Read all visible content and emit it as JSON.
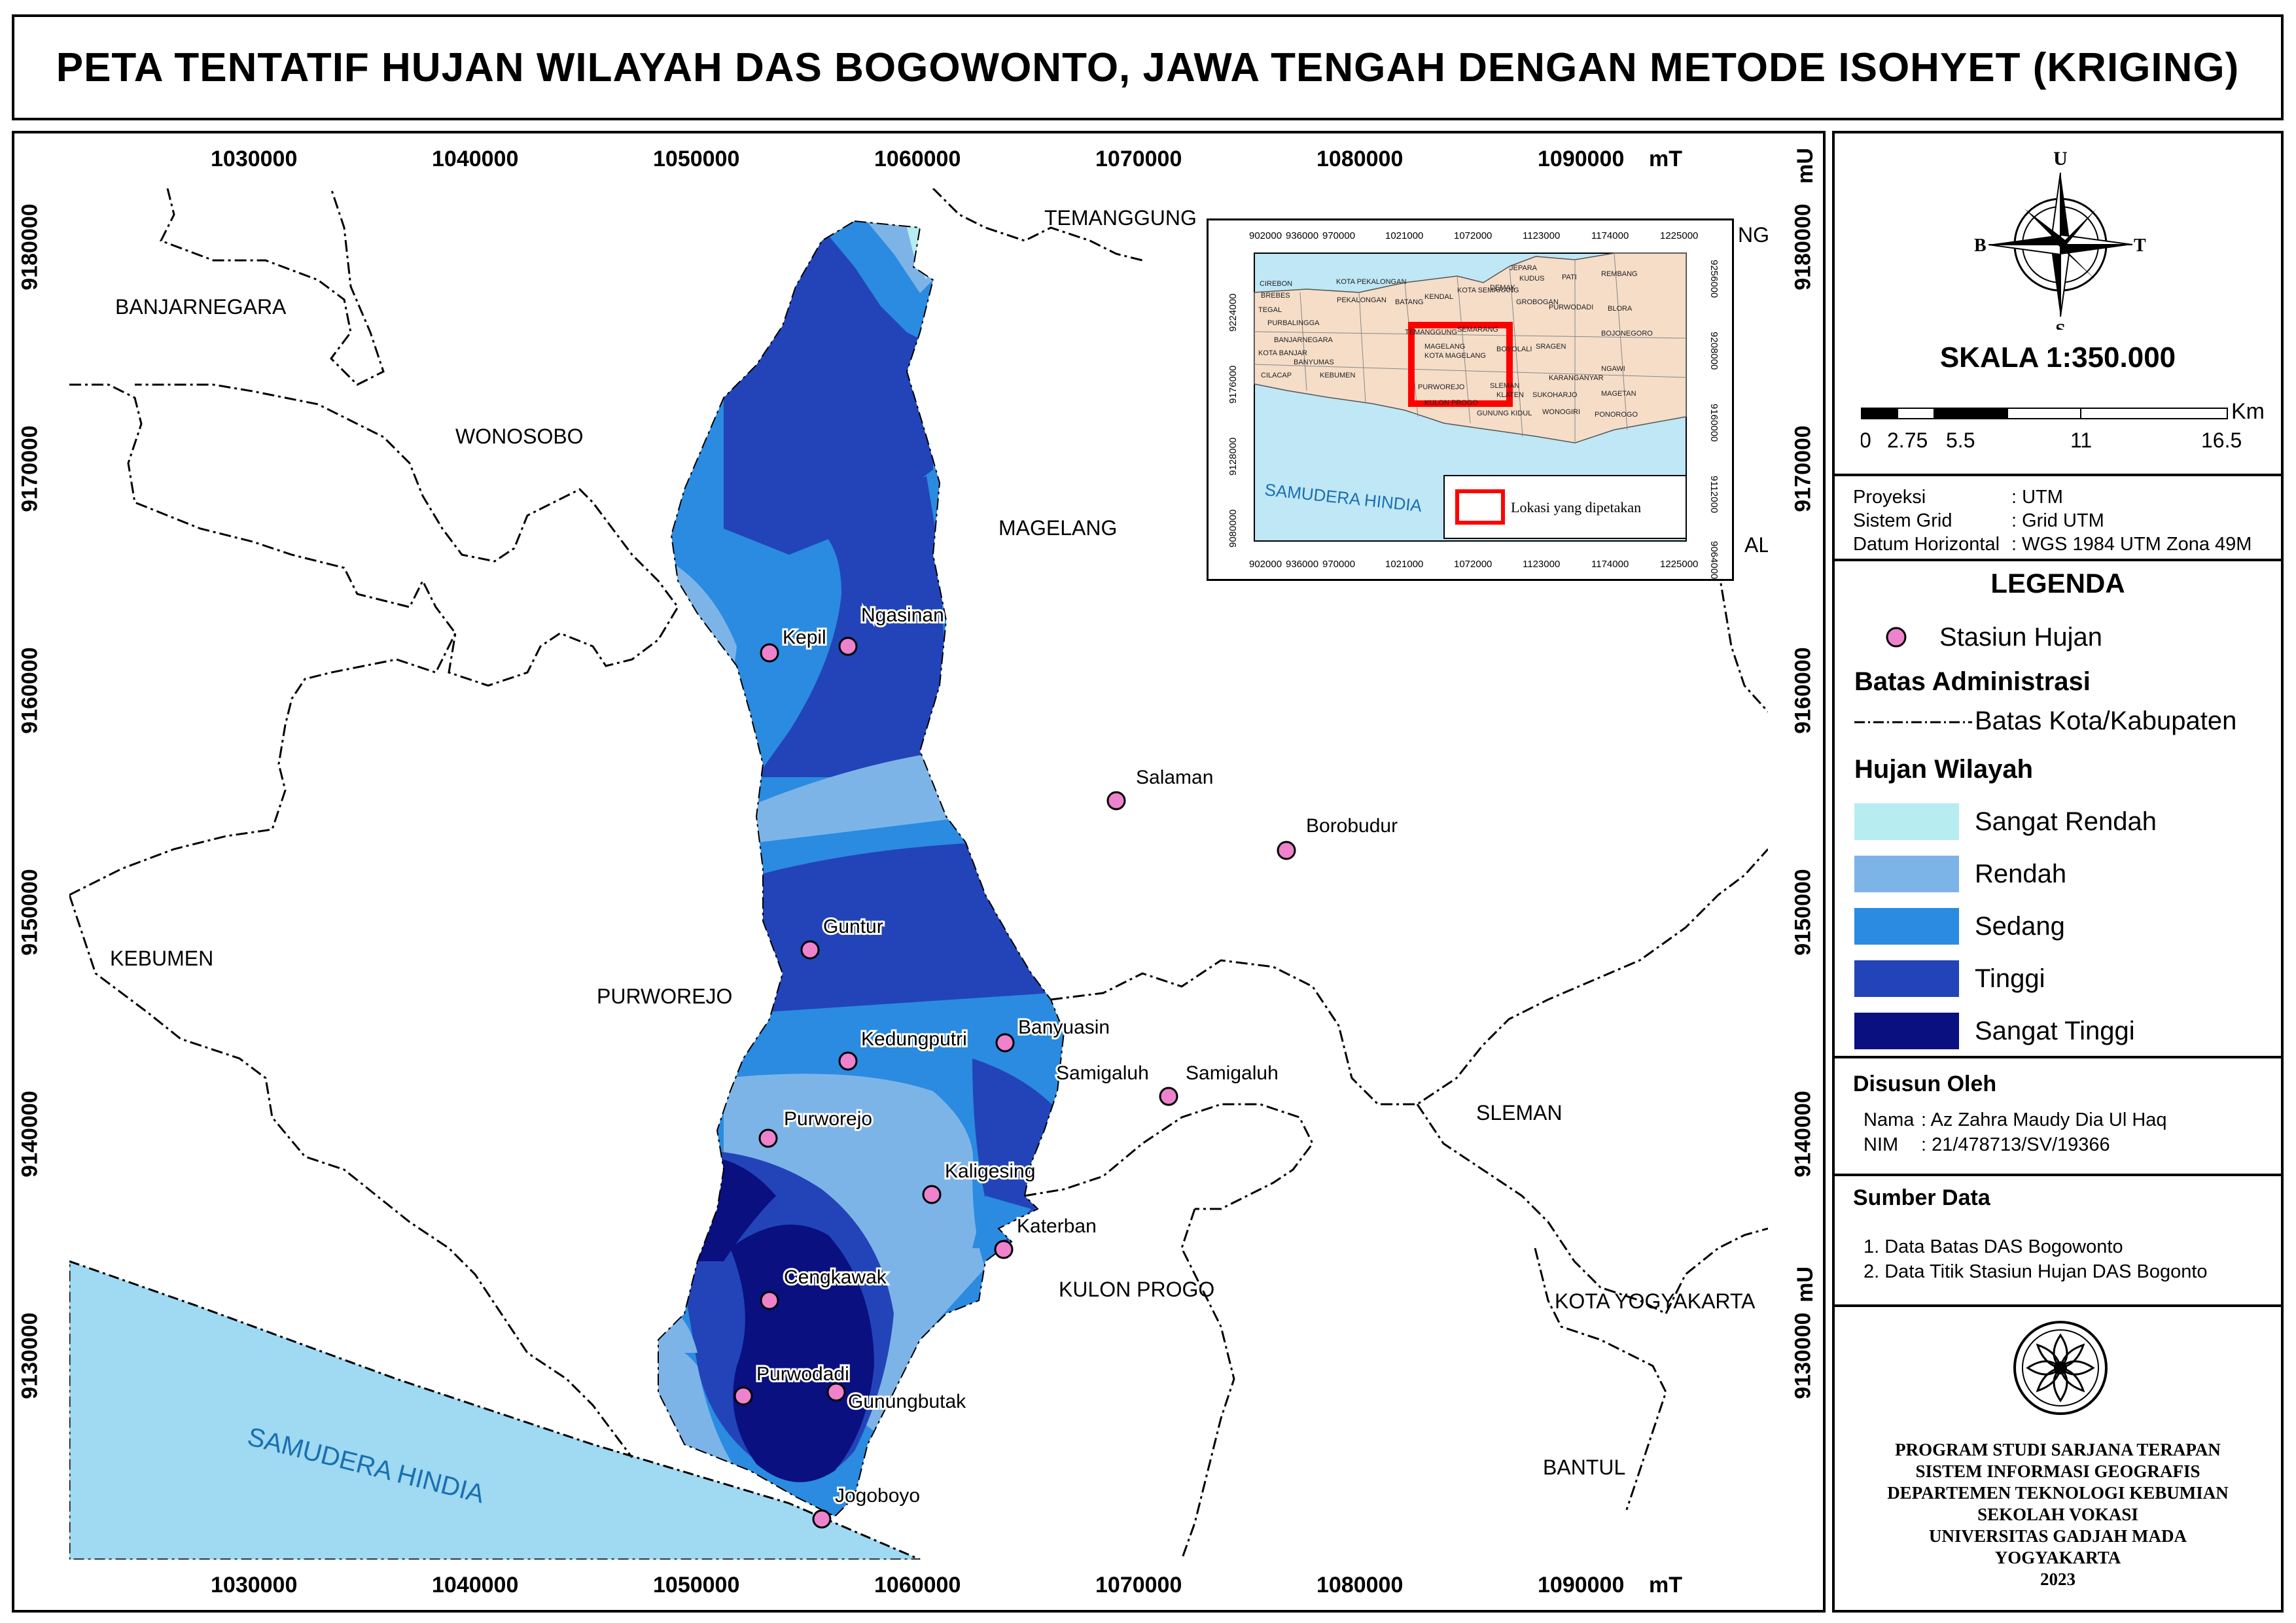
{
  "title": "PETA TENTATIF HUJAN WILAYAH DAS BOGOWONTO, JAWA TENGAH DENGAN METODE ISOHYET (KRIGING)",
  "grid": {
    "x_top": [
      "1030000",
      "1040000",
      "1050000",
      "1060000",
      "1070000",
      "1080000",
      "1090000"
    ],
    "x_bottom": [
      "1030000",
      "1040000",
      "1050000",
      "1060000",
      "1070000",
      "1080000",
      "1090000"
    ],
    "x_unit": "mT",
    "y_left": [
      "9180000",
      "9170000",
      "9160000",
      "9150000",
      "9140000",
      "9130000"
    ],
    "y_right": [
      "9180000",
      "9170000",
      "9160000",
      "9150000",
      "9140000",
      "9130000"
    ],
    "y_unit": "mU"
  },
  "regions": {
    "banjarnegara": "BANJARNEGARA",
    "wonosobo": "WONOSOBO",
    "temanggung": "TEMANGGUNG",
    "magelang": "MAGELANG",
    "kebumen": "KEBUMEN",
    "purworejo": "PURWOREJO",
    "kulon_progo": "KULON PROGO",
    "sleman": "SLEMAN",
    "kota_yogyakarta": "KOTA YOGYAKARTA",
    "bantul": "BANTUL",
    "samudera": "SAMUDERA HINDIA",
    "right_edge_1": "NG",
    "right_edge_2": "ALI"
  },
  "stations": [
    {
      "name": "Kepil"
    },
    {
      "name": "Ngasinan"
    },
    {
      "name": "Salaman"
    },
    {
      "name": "Borobudur"
    },
    {
      "name": "Guntur"
    },
    {
      "name": "Banyuasin"
    },
    {
      "name": "Kedungputri"
    },
    {
      "name": "Samigaluh"
    },
    {
      "name": "Samigaluh"
    },
    {
      "name": "Purworejo"
    },
    {
      "name": "Kaligesing"
    },
    {
      "name": "Katerban"
    },
    {
      "name": "Cengkawak"
    },
    {
      "name": "Purwodadi"
    },
    {
      "name": "Gunungbutak"
    },
    {
      "name": "Jogoboyo"
    }
  ],
  "inset": {
    "x_ticks": [
      "902000",
      "936000",
      "970000",
      "1021000",
      "1072000",
      "1123000",
      "1174000",
      "1225000"
    ],
    "y_left": [
      "9224000",
      "9176000",
      "9128000",
      "9080000"
    ],
    "y_right": [
      "9256000",
      "9208000",
      "9160000",
      "9112000",
      "9064000"
    ],
    "sea": "SAMUDERA HINDIA",
    "legend": "Lokasi yang dipetakan",
    "places": [
      "CIREBON",
      "BREBES",
      "TEGAL",
      "KOTA PEKALONGAN",
      "PEKALONGAN",
      "BATANG",
      "KENDAL",
      "KOTA SEMARANG",
      "DEMAK",
      "KUDUS",
      "PATI",
      "REMBANG",
      "JEPARA",
      "GROBOGAN",
      "PURWODADI",
      "BLORA",
      "PURBALINGGA",
      "BANJARNEGARA",
      "TEMANGGUNG",
      "SEMARANG",
      "BOYOLALI",
      "SRAGEN",
      "BOJONEGORO",
      "KOTA BANJAR",
      "BANYUMAS",
      "MAGELANG",
      "KOTA MAGELANG",
      "NGAWI",
      "CILACAP",
      "KEBUMEN",
      "PURWOREJO",
      "KULON PROGO",
      "SLEMAN",
      "KLATEN",
      "SUKOHARJO",
      "KARANGANYAR",
      "MAGETAN",
      "GUNUNG KIDUL",
      "WONOGIRI",
      "PONOROGO"
    ]
  },
  "north": {
    "u": "U",
    "s": "S",
    "b": "B",
    "t": "T"
  },
  "scale": {
    "title": "SKALA 1:350.000",
    "unit": "Km",
    "ticks": [
      "0",
      "2.75",
      "5.5",
      "11",
      "16.5"
    ]
  },
  "projection": [
    {
      "label": "Proyeksi",
      "value": ": UTM"
    },
    {
      "label": "Sistem Grid",
      "value": ": Grid UTM"
    },
    {
      "label": "Datum Horizontal",
      "value": ": WGS 1984 UTM Zona 49M"
    }
  ],
  "legend": {
    "title": "LEGENDA",
    "station": "Stasiun Hujan",
    "admin_title": "Batas Administrasi",
    "admin_line": "Batas Kota/Kabupaten",
    "rain_title": "Hujan Wilayah",
    "classes": [
      {
        "label": "Sangat Rendah",
        "color": "#b7ecf0"
      },
      {
        "label": "Rendah",
        "color": "#7db4e8"
      },
      {
        "label": "Sedang",
        "color": "#2a8be0"
      },
      {
        "label": "Tinggi",
        "color": "#2244b8"
      },
      {
        "label": "Sangat Tinggi",
        "color": "#0a1080"
      }
    ]
  },
  "author": {
    "title": "Disusun Oleh",
    "name_label": "Nama",
    "name_value": ": Az Zahra Maudy Dia Ul Haq",
    "nim_label": "NIM",
    "nim_value": ": 21/478713/SV/19366"
  },
  "sources": {
    "title": "Sumber Data",
    "items": [
      "1. Data Batas DAS Bogowonto",
      "2. Data Titik Stasiun Hujan DAS Bogonto"
    ]
  },
  "institution": [
    "PROGRAM STUDI SARJANA TERAPAN",
    "SISTEM INFORMASI GEOGRAFIS",
    "DEPARTEMEN TEKNOLOGI KEBUMIAN",
    "SEKOLAH VOKASI",
    "UNIVERSITAS GADJAH MADA",
    "YOGYAKARTA",
    "2023"
  ],
  "colors": {
    "sea": "#9fd9f2",
    "sangat_rendah": "#b7ecf0",
    "rendah": "#7db4e8",
    "sedang": "#2a8be0",
    "tinggi": "#2244b8",
    "sangat_tinggi": "#0a1080",
    "station": "#ee82cc",
    "inset_land": "#f5ddc8",
    "inset_box": "#ff0000"
  }
}
